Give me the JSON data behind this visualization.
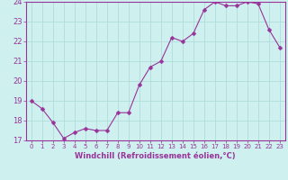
{
  "x": [
    0,
    1,
    2,
    3,
    4,
    5,
    6,
    7,
    8,
    9,
    10,
    11,
    12,
    13,
    14,
    15,
    16,
    17,
    18,
    19,
    20,
    21,
    22,
    23
  ],
  "y": [
    19.0,
    18.6,
    17.9,
    17.1,
    17.4,
    17.6,
    17.5,
    17.5,
    18.4,
    18.4,
    19.8,
    20.7,
    21.0,
    22.2,
    22.0,
    22.4,
    23.6,
    24.0,
    23.8,
    23.8,
    24.0,
    23.9,
    22.6,
    21.7
  ],
  "bg_color": "#cef0ee",
  "line_color": "#993399",
  "marker_color": "#993399",
  "grid_color": "#aad8d8",
  "xlabel": "Windchill (Refroidissement éolien,°C)",
  "xlabel_color": "#993399",
  "tick_color": "#993399",
  "ylim": [
    17,
    24
  ],
  "yticks": [
    17,
    18,
    19,
    20,
    21,
    22,
    23,
    24
  ],
  "xticks": [
    0,
    1,
    2,
    3,
    4,
    5,
    6,
    7,
    8,
    9,
    10,
    11,
    12,
    13,
    14,
    15,
    16,
    17,
    18,
    19,
    20,
    21,
    22,
    23
  ],
  "spine_color": "#993399"
}
